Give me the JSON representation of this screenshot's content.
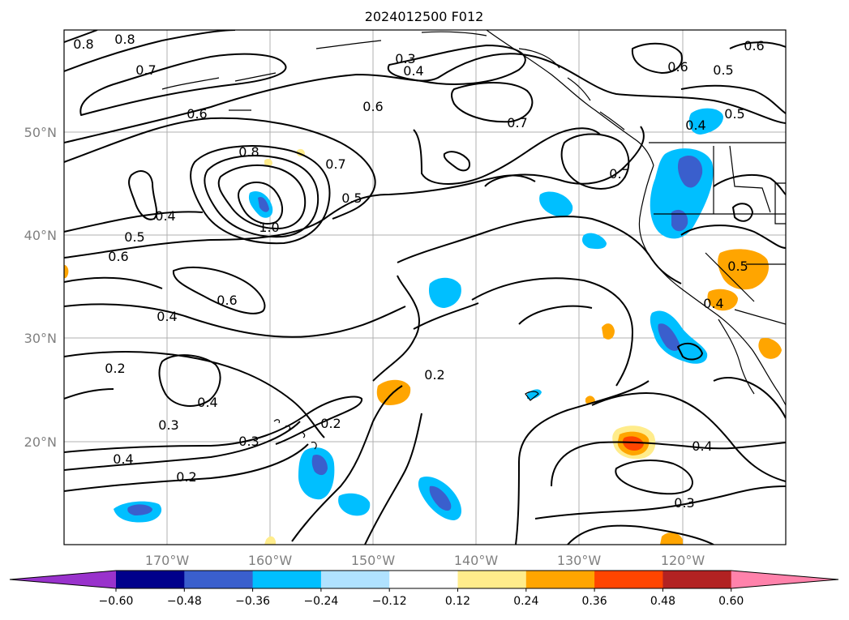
{
  "title": "2024012500 F012",
  "lat_ticks": [
    "50°N",
    "40°N",
    "30°N",
    "20°N"
  ],
  "lon_ticks": [
    "170°W",
    "160°W",
    "150°W",
    "140°W",
    "130°W",
    "120°W"
  ],
  "colorbar": {
    "labels": [
      "−0.60",
      "−0.48",
      "−0.36",
      "−0.24",
      "−0.12",
      "0.12",
      "0.24",
      "0.36",
      "0.48",
      "0.60"
    ],
    "colors": [
      "#9932cc",
      "#00008b",
      "#3a5fcd",
      "#00bfff",
      "#b0e2ff",
      "#ffffff",
      "#ffec8b",
      "#ffa500",
      "#ff4500",
      "#b22222",
      "#ff82ab"
    ]
  },
  "contour_labels": [
    "0.8",
    "0.8",
    "0.7",
    "0.6",
    "0.3",
    "0.4",
    "0.6",
    "0.7",
    "0.6",
    "0.5",
    "0.6",
    "0.5",
    "0.4",
    "0.8",
    "0.7",
    "0.5",
    "1.0",
    "0.4",
    "0.5",
    "0.6",
    "0.6",
    "0.4",
    "0.7",
    "0.5",
    "0.4",
    "0.2",
    "0.4",
    "0.3",
    "0.3",
    "0.2",
    "0.2",
    "0.2",
    "0.4",
    "0.4",
    "0.3"
  ]
}
